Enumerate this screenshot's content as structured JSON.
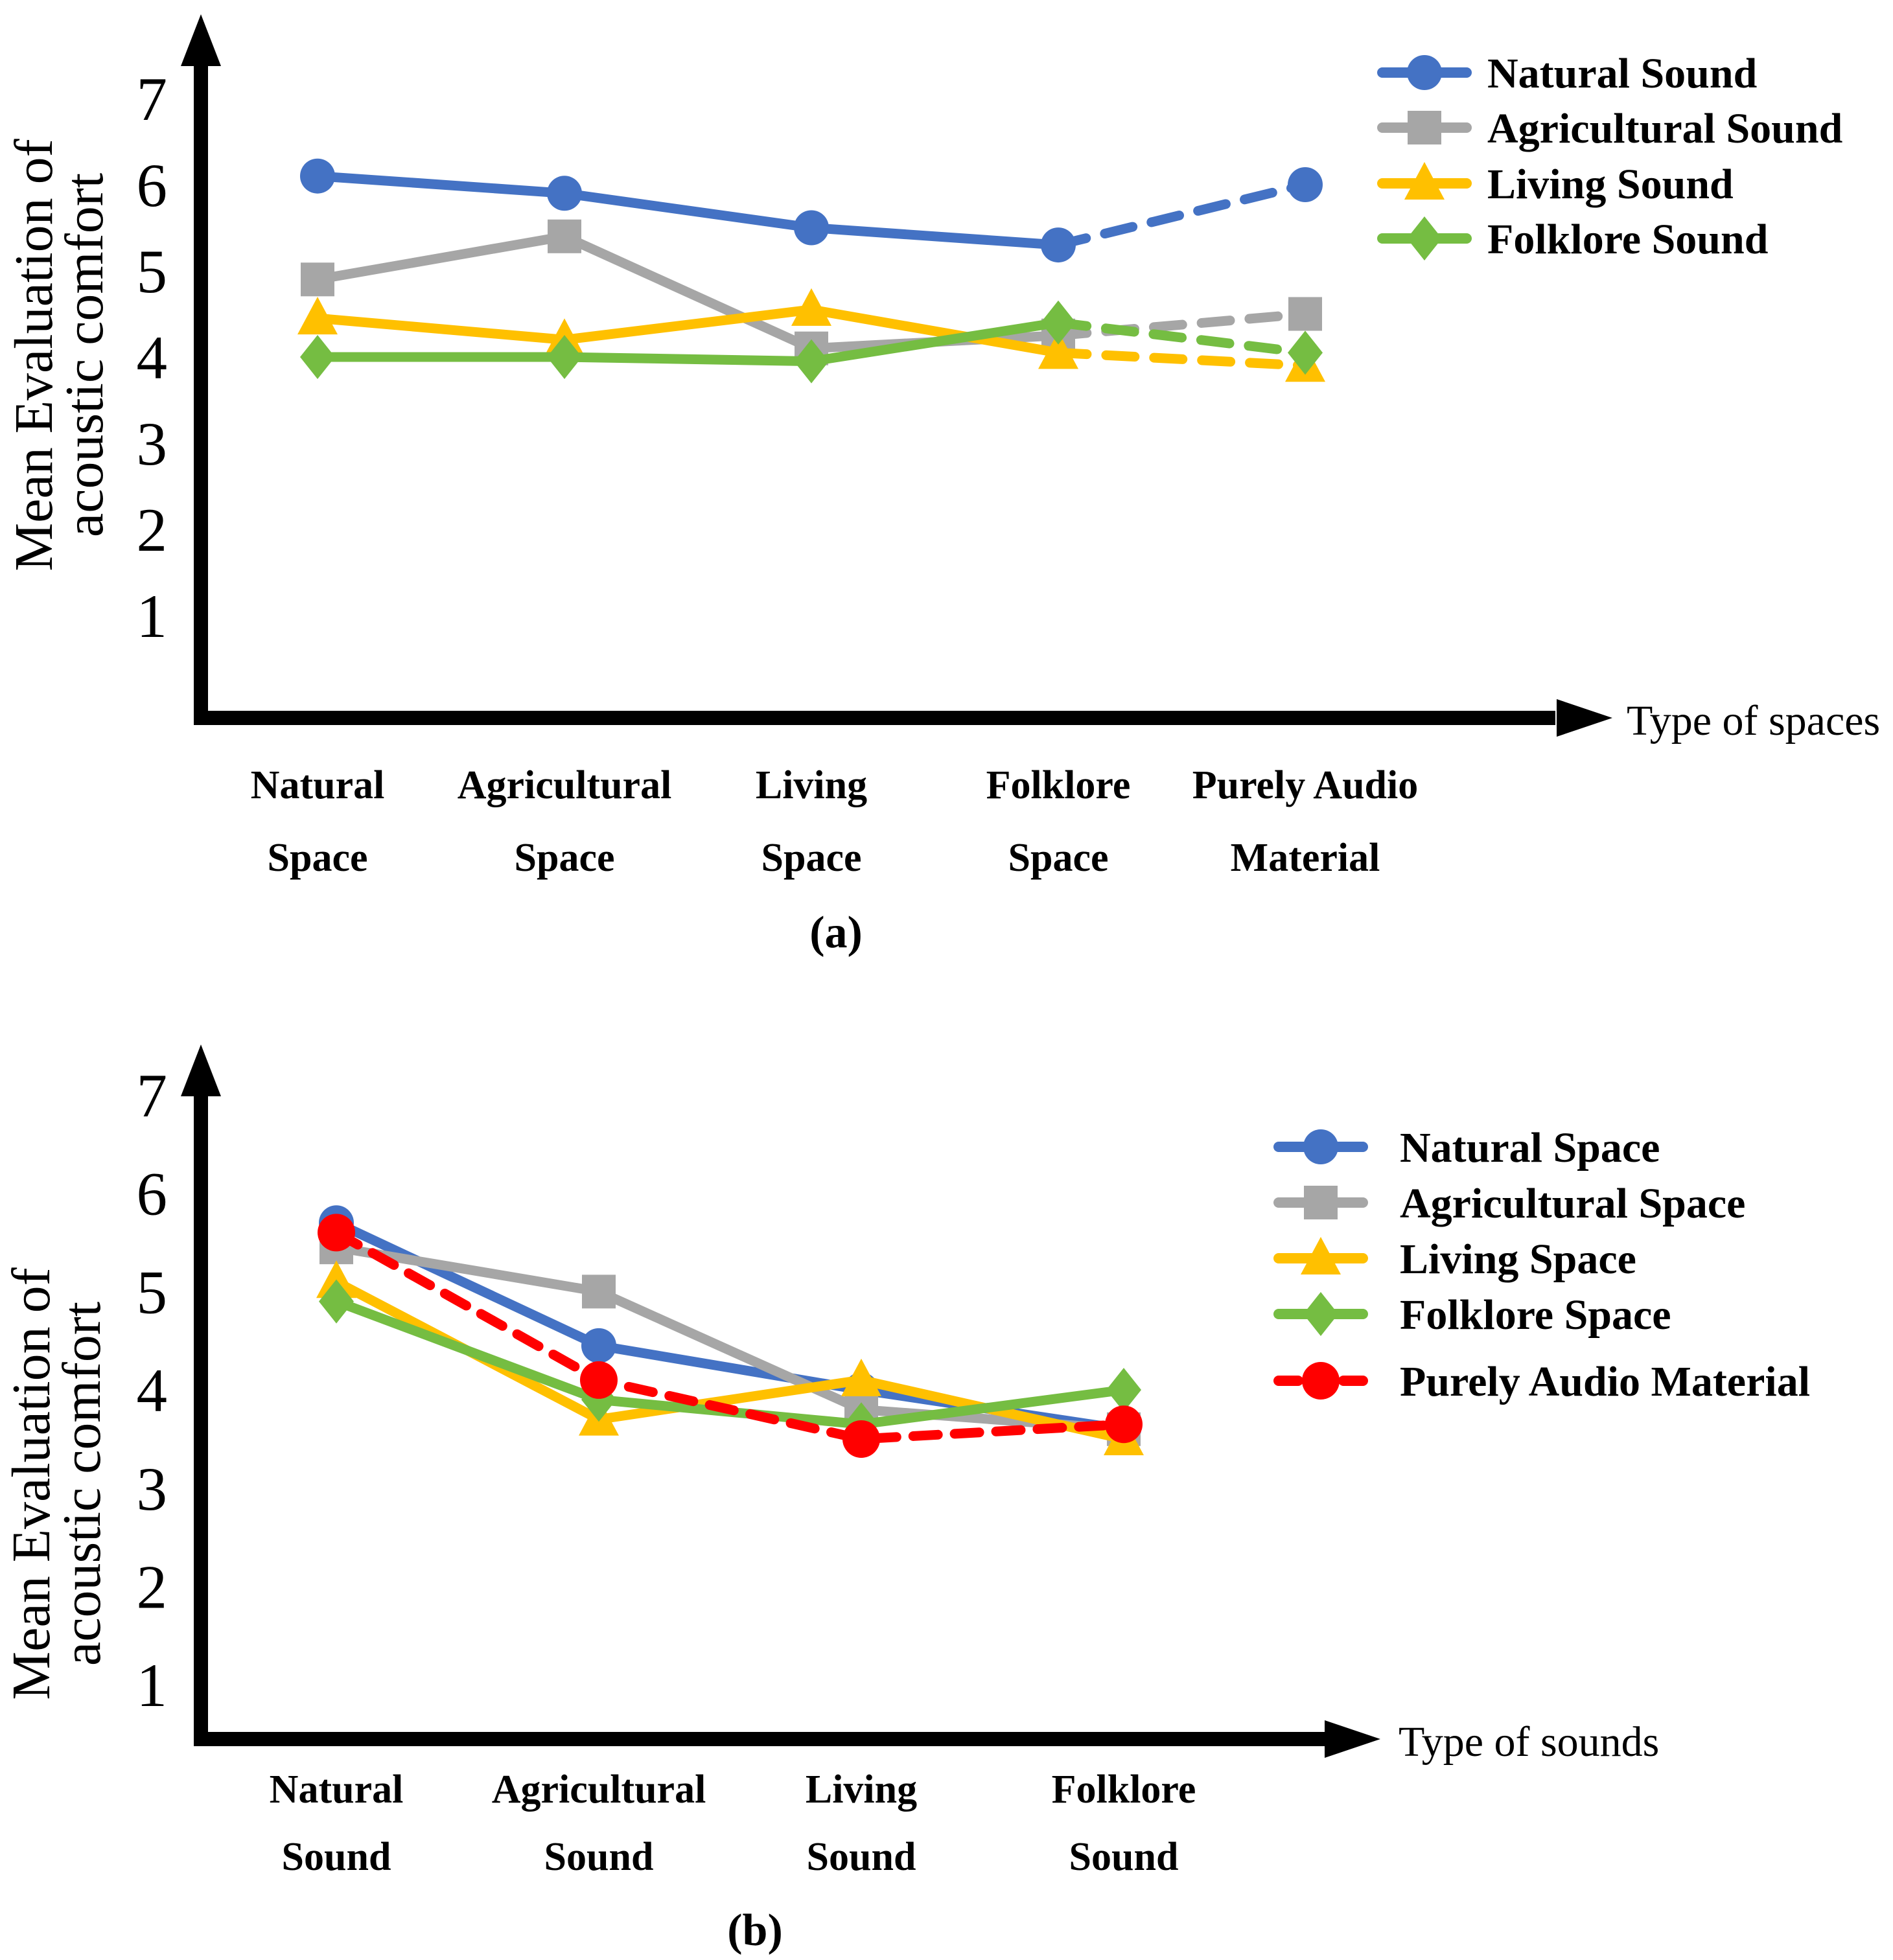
{
  "figure": {
    "background": "#ffffff",
    "text_color": "#000000",
    "axis_color": "#000000"
  },
  "chart_data": [
    {
      "id": "a",
      "type": "line",
      "caption": "(a)",
      "xlabel": "Type of spaces",
      "ylabel_lines": [
        "Mean Evaluation of",
        "acoustic comfort"
      ],
      "ylim": [
        1,
        7
      ],
      "yticks": [
        1,
        2,
        3,
        4,
        5,
        6,
        7
      ],
      "grid": false,
      "legend_position": "top-right",
      "categories": [
        [
          "Natural",
          "Space"
        ],
        [
          "Agricultural",
          "Space"
        ],
        [
          "Living",
          "Space"
        ],
        [
          "Folklore",
          "Space"
        ],
        [
          "Purely Audio",
          "Material"
        ]
      ],
      "series": [
        {
          "name": "Natural Sound",
          "color": "#4472c4",
          "marker": "circle",
          "line_style": "solid-then-dashed",
          "dashed_from": 3,
          "values": [
            6.1,
            5.9,
            5.5,
            5.3,
            6.0
          ]
        },
        {
          "name": "Agricultural Sound",
          "color": "#a6a6a6",
          "marker": "square",
          "line_style": "solid-then-dashed",
          "dashed_from": 3,
          "values": [
            4.9,
            5.4,
            4.1,
            4.25,
            4.5
          ]
        },
        {
          "name": "Living Sound",
          "color": "#ffc000",
          "marker": "triangle",
          "line_style": "solid-then-dashed",
          "dashed_from": 3,
          "values": [
            4.45,
            4.2,
            4.55,
            4.05,
            3.9
          ]
        },
        {
          "name": "Folklore Sound",
          "color": "#75bd42",
          "marker": "diamond",
          "line_style": "solid-then-dashed",
          "dashed_from": 3,
          "values": [
            4.0,
            4.0,
            3.95,
            4.4,
            4.05
          ]
        }
      ]
    },
    {
      "id": "b",
      "type": "line",
      "caption": "(b)",
      "xlabel": "Type of sounds",
      "ylabel_lines": [
        "Mean Evaluation of",
        "acoustic comfort"
      ],
      "ylim": [
        1,
        7
      ],
      "yticks": [
        1,
        2,
        3,
        4,
        5,
        6,
        7
      ],
      "grid": false,
      "legend_position": "right",
      "categories": [
        [
          "Natural",
          "Sound"
        ],
        [
          "Agricultural",
          "Sound"
        ],
        [
          "Living",
          "Sound"
        ],
        [
          "Folklore",
          "Sound"
        ]
      ],
      "series": [
        {
          "name": "Natural Space",
          "color": "#4472c4",
          "marker": "circle",
          "line_style": "solid",
          "values": [
            5.7,
            4.45,
            4.0,
            3.6
          ]
        },
        {
          "name": "Agricultural Space",
          "color": "#a6a6a6",
          "marker": "square",
          "line_style": "solid",
          "values": [
            5.45,
            5.0,
            3.8,
            3.6
          ]
        },
        {
          "name": "Living Space",
          "color": "#ffc000",
          "marker": "triangle",
          "line_style": "solid",
          "values": [
            5.1,
            3.7,
            4.1,
            3.5
          ]
        },
        {
          "name": "Folklore Space",
          "color": "#75bd42",
          "marker": "diamond",
          "line_style": "solid",
          "values": [
            4.9,
            3.9,
            3.65,
            4.0
          ]
        },
        {
          "name": "Purely Audio Material",
          "color": "#ff0000",
          "marker": "circle",
          "line_style": "dashed",
          "dash_all": true,
          "values": [
            5.6,
            4.1,
            3.5,
            3.65
          ]
        }
      ]
    }
  ]
}
